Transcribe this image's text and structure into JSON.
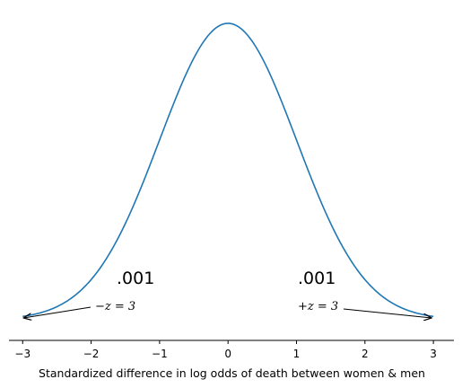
{
  "chart_data": {
    "type": "line",
    "title": "",
    "xlabel": "Standardized difference in log odds of death between women & men",
    "ylabel": "",
    "xlim": [
      -3.2,
      3.3
    ],
    "x_ticks": [
      -3,
      -2,
      -1,
      0,
      1,
      2,
      3
    ],
    "x_tick_labels": [
      "−3",
      "−2",
      "−1",
      "0",
      "1",
      "2",
      "3"
    ],
    "series": [
      {
        "type": "normal_pdf",
        "mean": 0,
        "sd": 1,
        "x_range": [
          -3,
          3
        ],
        "color": "#1f77b4"
      }
    ],
    "annotations": [
      {
        "text": ".001",
        "kind": "tail-probability",
        "side": "left"
      },
      {
        "text": "−z = 3",
        "kind": "arrow-label",
        "side": "left",
        "arrow_to_x": -3
      },
      {
        "text": ".001",
        "kind": "tail-probability",
        "side": "right"
      },
      {
        "text": "+z = 3",
        "kind": "arrow-label",
        "side": "right",
        "arrow_to_x": 3
      }
    ],
    "grid": false,
    "spines": [
      "bottom"
    ]
  }
}
